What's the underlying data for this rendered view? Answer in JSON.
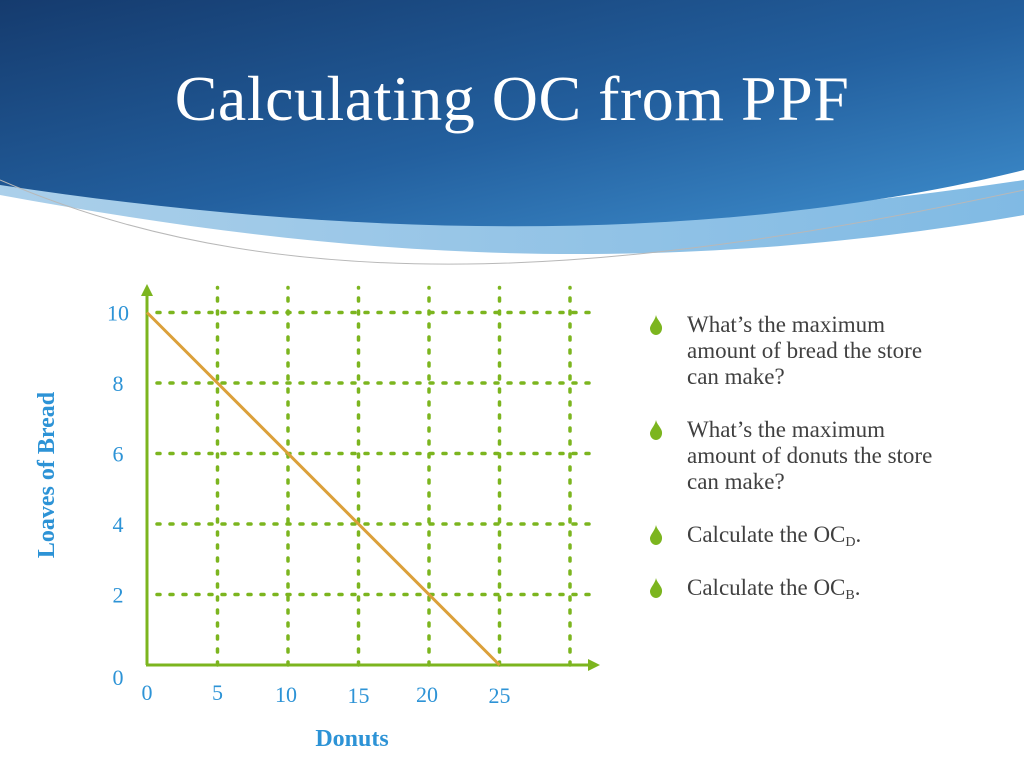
{
  "slide": {
    "title": "Calculating OC from PPF",
    "colors": {
      "header_dark": "#17457e",
      "header_light": "#3d8fcf",
      "accent_green": "#7cb51f",
      "line_orange": "#dba03a",
      "label_blue": "#2d93d6",
      "text_gray": "#404040"
    }
  },
  "chart_data": {
    "type": "line",
    "xlabel": "Donuts",
    "ylabel": "Loaves of Bread",
    "x_ticks": [
      "0",
      "5",
      "10",
      "15",
      "20",
      "25"
    ],
    "y_ticks": [
      "0",
      "2",
      "4",
      "6",
      "8",
      "10"
    ],
    "xlim": [
      0,
      30
    ],
    "ylim": [
      0,
      10
    ],
    "grid": "dotted",
    "series": [
      {
        "x": [
          0,
          25
        ],
        "y": [
          10,
          0
        ]
      }
    ]
  },
  "bullets": [
    {
      "icon": "flame-bullet-icon",
      "text": "What’s the maximum amount of bread the store can make?",
      "sub": "",
      "suffix": ""
    },
    {
      "icon": "flame-bullet-icon",
      "text": "What’s the maximum amount of donuts the store can make?",
      "sub": "",
      "suffix": ""
    },
    {
      "icon": "flame-bullet-icon",
      "text": "Calculate the OC",
      "sub": "D",
      "suffix": "."
    },
    {
      "icon": "flame-bullet-icon",
      "text": "Calculate the OC",
      "sub": "B",
      "suffix": "."
    }
  ]
}
